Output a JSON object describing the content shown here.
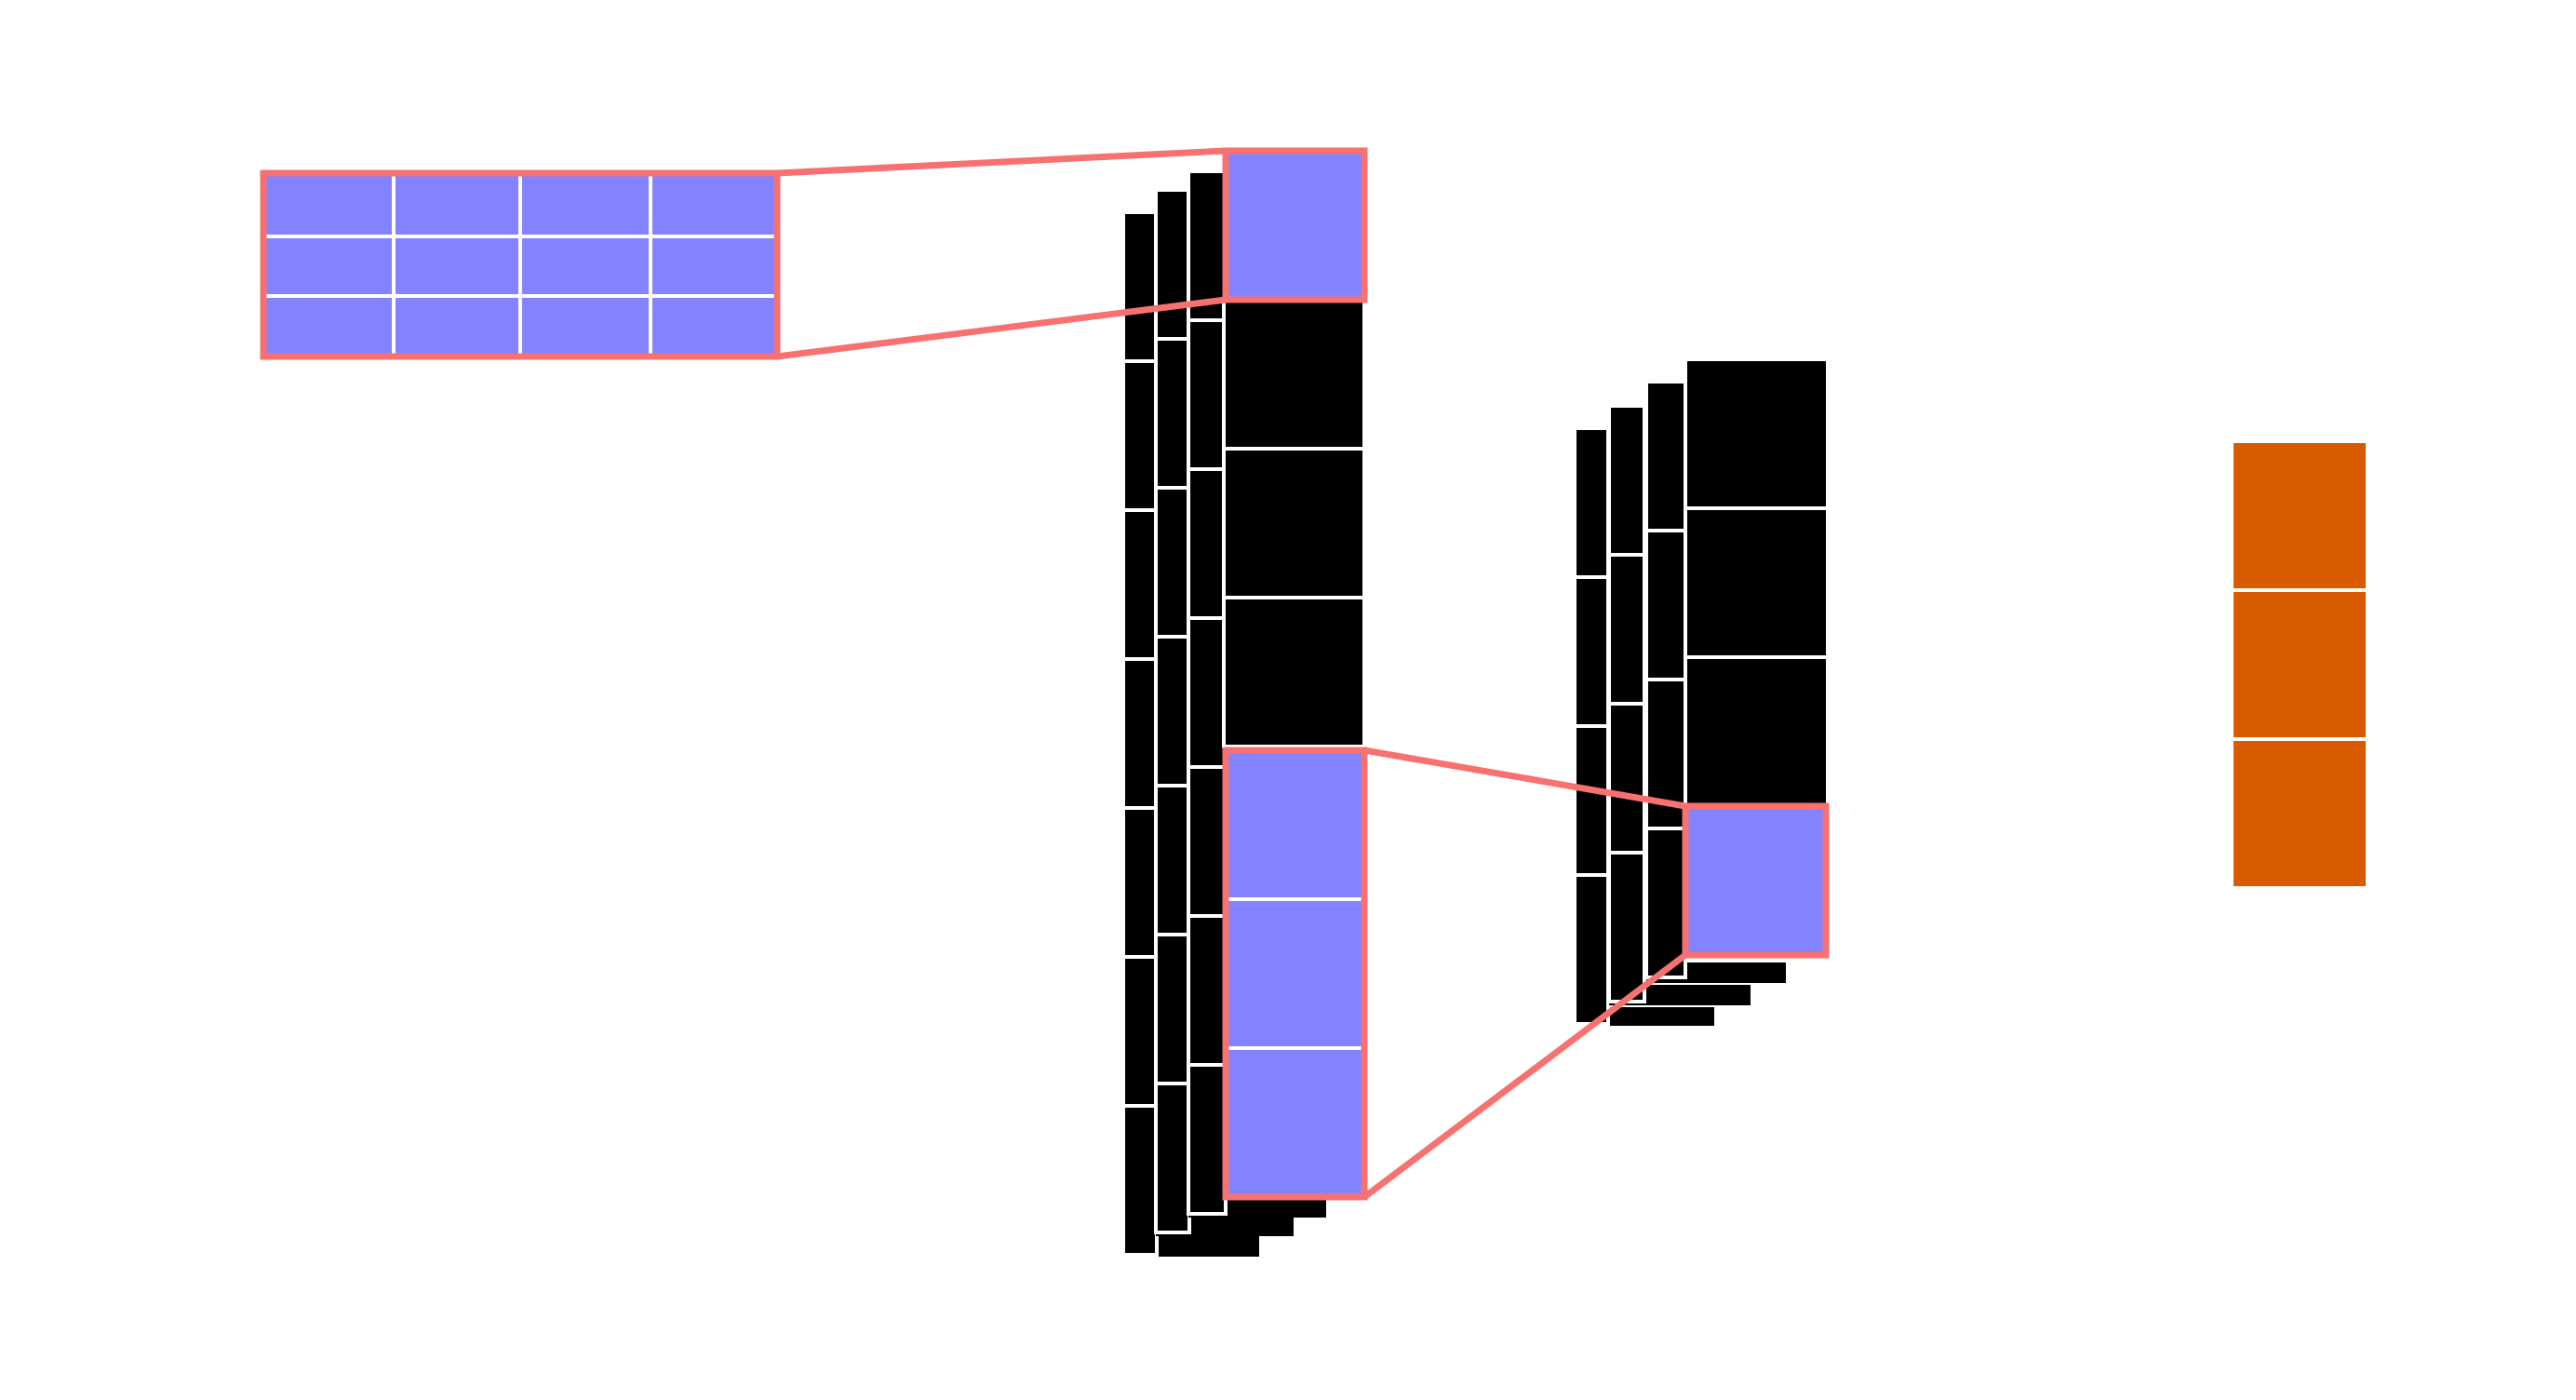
{
  "colors": {
    "background": "#ffffff",
    "cell_fill": "#000000",
    "cell_stroke": "#ffffff",
    "highlight_fill": "#8383ff",
    "highlight_stroke": "#f87171",
    "output_fill": "#d95b00",
    "connector": "#f87171"
  },
  "diagram": {
    "kernel": {
      "rows": 3,
      "cols": 4
    },
    "layer1": {
      "channels": 4,
      "cells_per_channel": 7
    },
    "layer2": {
      "channels": 4,
      "cells_per_channel": 4
    },
    "output": {
      "cells": 3
    }
  }
}
